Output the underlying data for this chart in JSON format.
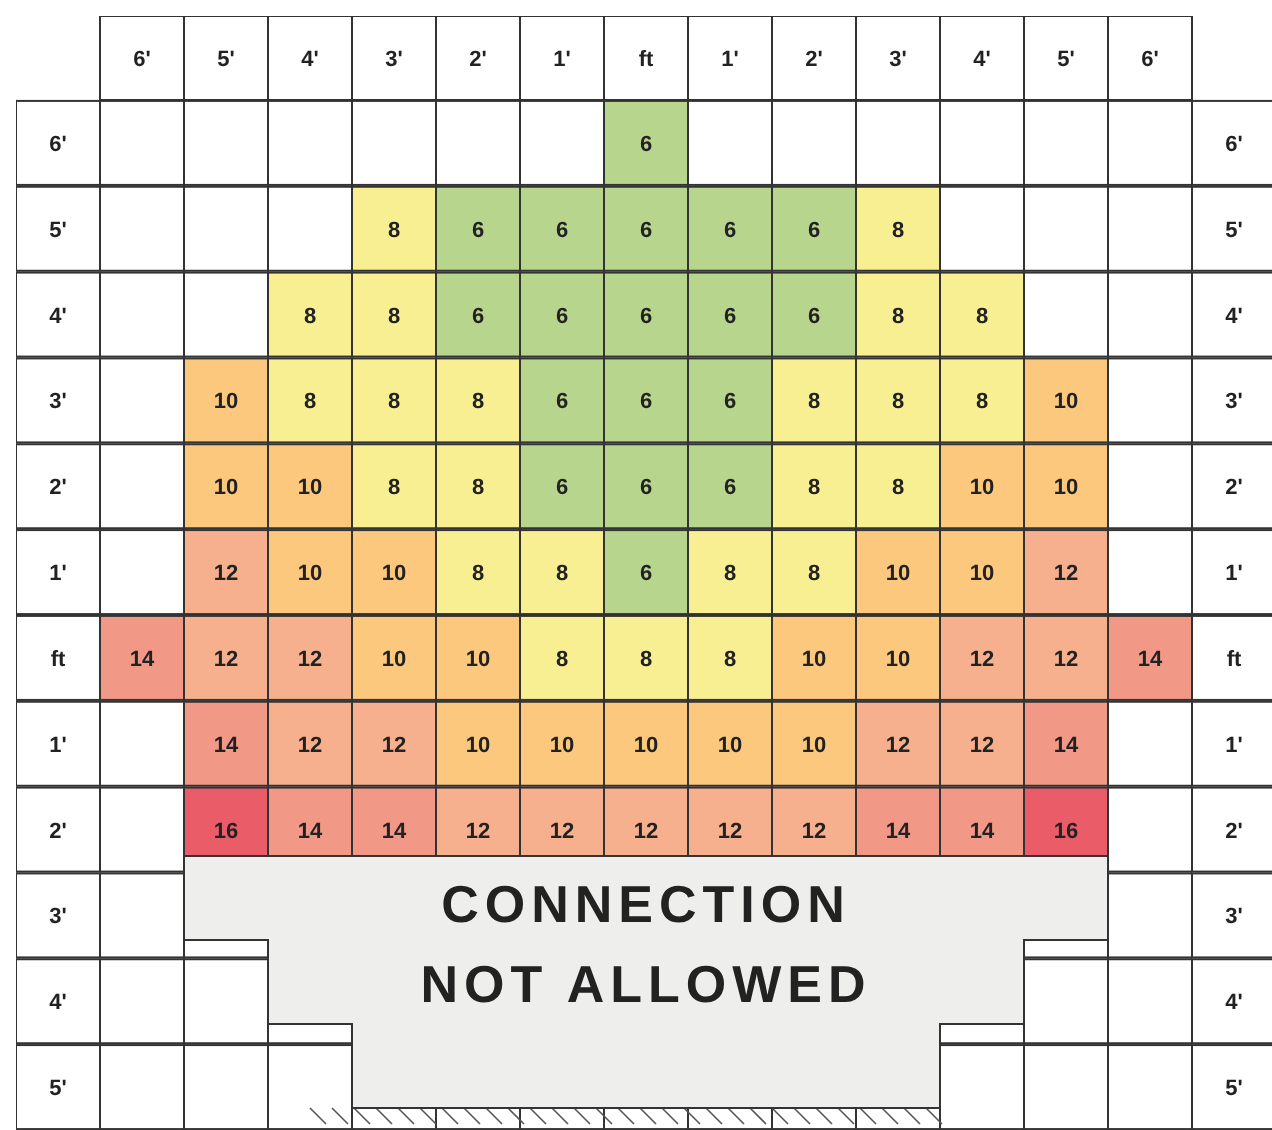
{
  "chart_data": {
    "type": "heatmap",
    "categories": [
      "6'",
      "5'",
      "4'",
      "3'",
      "2'",
      "1'",
      "ft",
      "1'",
      "2'",
      "3'",
      "4'",
      "5'",
      "6'"
    ],
    "y_categories": [
      "6'",
      "5'",
      "4'",
      "3'",
      "2'",
      "1'",
      "ft",
      "1'",
      "2'",
      "3'",
      "4'",
      "5'"
    ],
    "y2_categories": [
      "6'",
      "5'",
      "4'",
      "3'",
      "2'",
      "1'",
      "ft",
      "1'",
      "2'",
      "3'",
      "4'",
      "5'"
    ],
    "cells": [
      [
        null,
        null,
        null,
        null,
        null,
        null,
        6,
        null,
        null,
        null,
        null,
        null,
        null
      ],
      [
        null,
        null,
        null,
        8,
        6,
        6,
        6,
        6,
        6,
        8,
        null,
        null,
        null
      ],
      [
        null,
        null,
        8,
        8,
        6,
        6,
        6,
        6,
        6,
        8,
        8,
        null,
        null
      ],
      [
        null,
        10,
        8,
        8,
        8,
        6,
        6,
        6,
        8,
        8,
        8,
        10,
        null
      ],
      [
        null,
        10,
        10,
        8,
        8,
        6,
        6,
        6,
        8,
        8,
        10,
        10,
        null
      ],
      [
        null,
        12,
        10,
        10,
        8,
        8,
        6,
        8,
        8,
        10,
        10,
        12,
        null
      ],
      [
        14,
        12,
        12,
        10,
        10,
        8,
        8,
        8,
        10,
        10,
        12,
        12,
        14
      ],
      [
        null,
        14,
        12,
        12,
        10,
        10,
        10,
        10,
        10,
        12,
        12,
        14,
        null
      ],
      [
        null,
        16,
        14,
        14,
        12,
        12,
        12,
        12,
        12,
        14,
        14,
        16,
        null
      ],
      [
        null,
        null,
        null,
        null,
        null,
        null,
        null,
        null,
        null,
        null,
        null,
        null,
        null
      ],
      [
        null,
        null,
        null,
        null,
        null,
        null,
        null,
        null,
        null,
        null,
        null,
        null,
        null
      ],
      [
        null,
        null,
        null,
        null,
        null,
        null,
        null,
        null,
        null,
        null,
        null,
        null,
        null
      ]
    ],
    "data_labels": true,
    "annotations": [
      "CONNECTION NOT ALLOWED"
    ]
  }
}
